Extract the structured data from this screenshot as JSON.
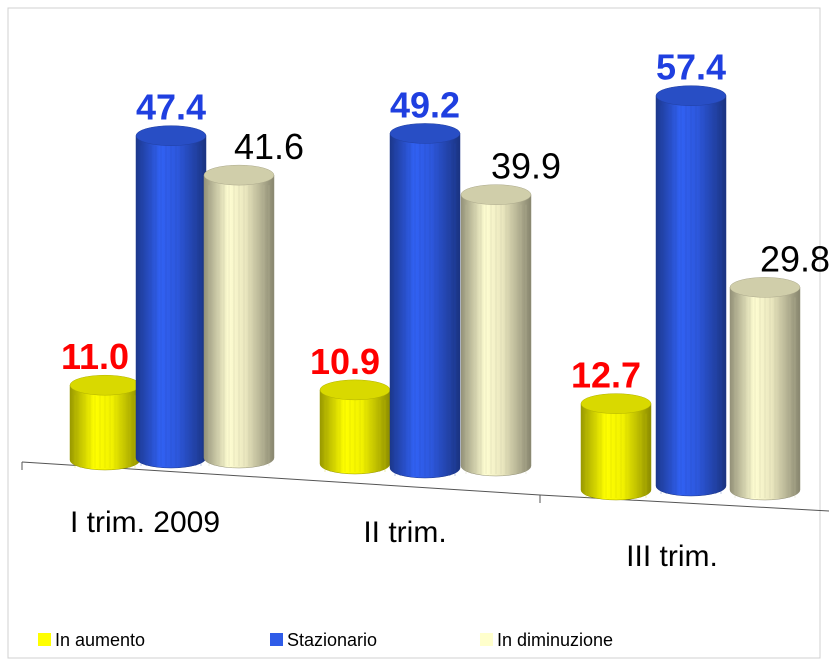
{
  "chart_data": {
    "type": "cylinder",
    "categories": [
      "I trim. 2009",
      "II trim.",
      "III trim."
    ],
    "series": [
      {
        "name": "In aumento",
        "color": "#ffff00",
        "values": [
          11.0,
          10.9,
          12.7
        ],
        "value_labels": [
          "11.0",
          "10.9",
          "12.7"
        ]
      },
      {
        "name": "Stazionario",
        "color": "#2f5ce8",
        "values": [
          47.4,
          49.2,
          57.4
        ],
        "value_labels": [
          "47.4",
          "49.2",
          "57.4"
        ]
      },
      {
        "name": "In diminuzione",
        "color": "#f5f2c8",
        "values": [
          41.6,
          39.9,
          29.8
        ],
        "value_labels": [
          "41.6",
          "39.9",
          "29.8"
        ]
      }
    ]
  }
}
